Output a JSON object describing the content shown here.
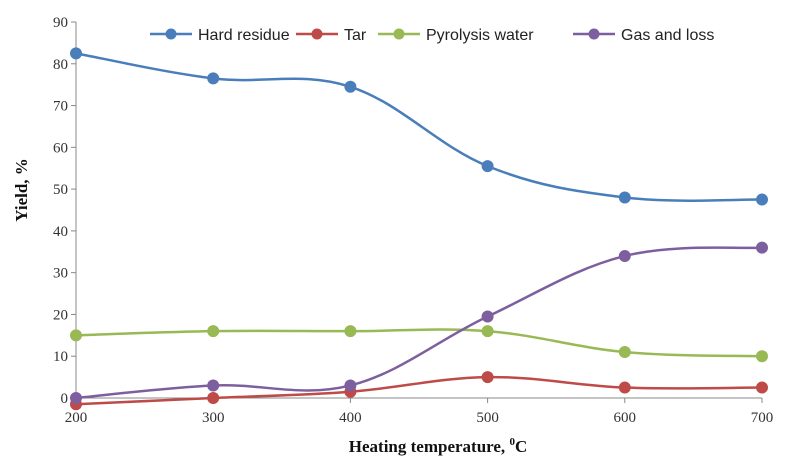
{
  "chart_data": {
    "type": "line",
    "title": "",
    "xlabel": "Heating temperature, ",
    "xlabel_unit": "C",
    "xlabel_sup": "0",
    "ylabel": "Yield, %",
    "x": [
      200,
      300,
      400,
      500,
      600,
      700
    ],
    "xlim": [
      200,
      700
    ],
    "ylim": [
      0,
      90
    ],
    "yticks": [
      0,
      10,
      20,
      30,
      40,
      50,
      60,
      70,
      80,
      90
    ],
    "grid": false,
    "legend_position": "top",
    "smooth": true,
    "series": [
      {
        "name": "Hard residue",
        "color": "#4A7EBB",
        "values": [
          82.5,
          76.5,
          74.5,
          55.5,
          48.0,
          47.5
        ]
      },
      {
        "name": "Tar",
        "color": "#BE4B48",
        "values": [
          -1.5,
          0.0,
          1.5,
          5.0,
          2.5,
          2.5
        ]
      },
      {
        "name": "Pyrolysis water",
        "color": "#98B954",
        "values": [
          15.0,
          16.0,
          16.0,
          16.0,
          11.0,
          10.0
        ]
      },
      {
        "name": "Gas and loss",
        "color": "#7D5FA0",
        "values": [
          0.0,
          3.0,
          3.0,
          19.5,
          34.0,
          36.0
        ]
      }
    ]
  }
}
